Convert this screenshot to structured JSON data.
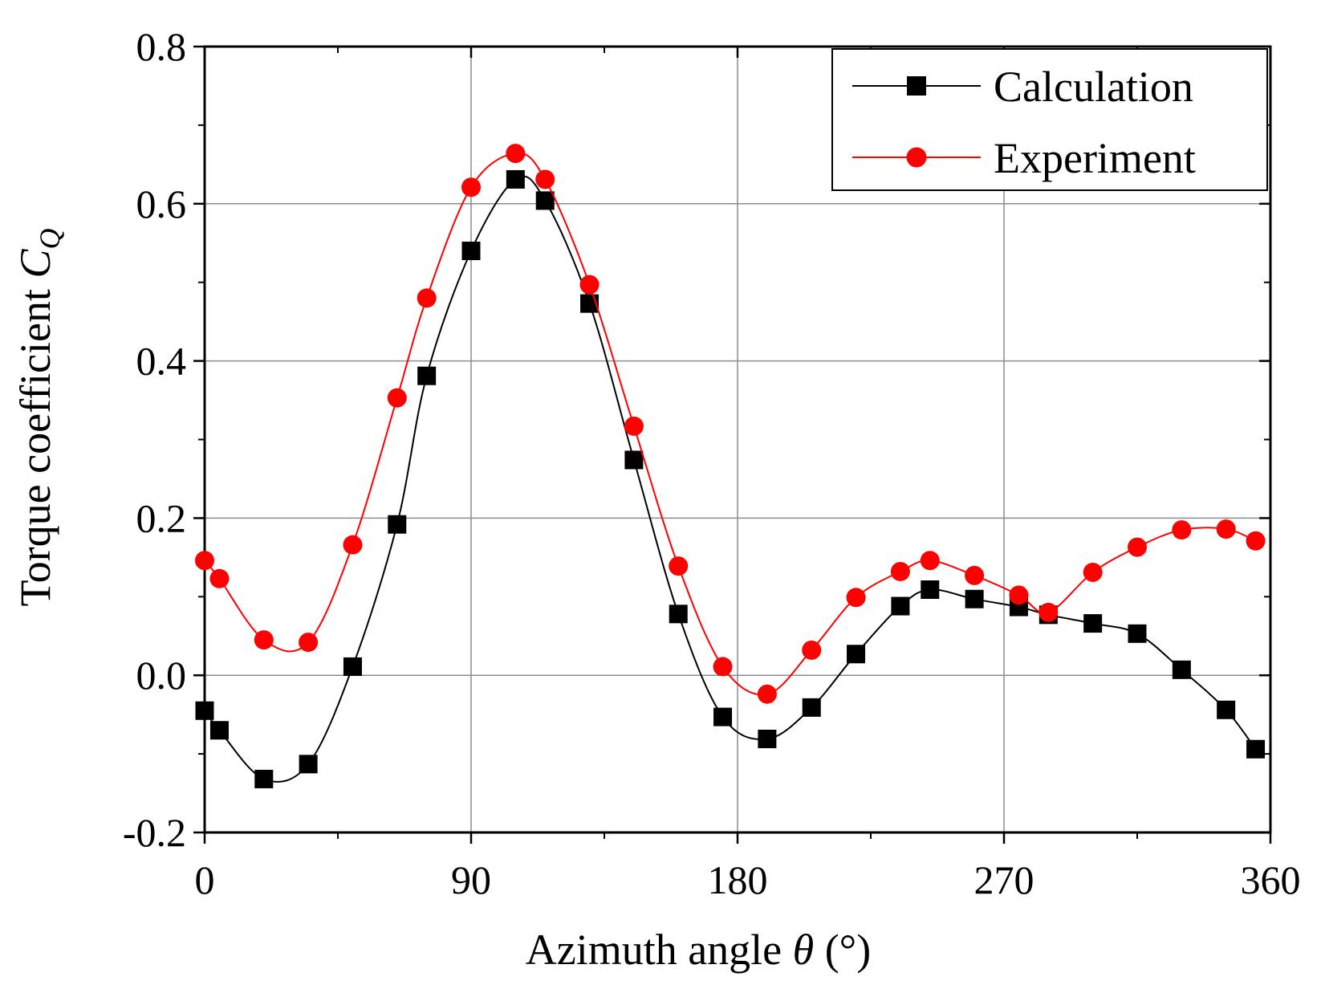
{
  "chart_data": {
    "type": "line",
    "title": "",
    "xlabel": "Azimuth angle",
    "xlabel_symbol": "θ",
    "xlabel_unit": "(°)",
    "ylabel": "Torque coefficient",
    "ylabel_symbol": "C",
    "ylabel_subscript": "Q",
    "xlim": [
      0,
      360
    ],
    "ylim": [
      -0.2,
      0.8
    ],
    "xticks": [
      0,
      90,
      180,
      270,
      360
    ],
    "yticks": [
      -0.2,
      0.0,
      0.2,
      0.4,
      0.6,
      0.8
    ],
    "xtick_labels": [
      "0",
      "90",
      "180",
      "270",
      "360"
    ],
    "ytick_labels": [
      "-0.2",
      "0.0",
      "0.2",
      "0.4",
      "0.6",
      "0.8"
    ],
    "grid": true,
    "legend_position": "top-right",
    "series": [
      {
        "name": "Calculation",
        "color": "#000000",
        "marker": "square",
        "x": [
          0,
          5,
          20,
          35,
          50,
          65,
          75,
          90,
          105,
          115,
          130,
          145,
          160,
          175,
          190,
          205,
          220,
          235,
          245,
          260,
          275,
          285,
          300,
          315,
          330,
          345,
          355
        ],
        "y": [
          -0.045,
          -0.07,
          -0.132,
          -0.113,
          0.011,
          0.192,
          0.381,
          0.54,
          0.631,
          0.604,
          0.473,
          0.274,
          0.078,
          -0.053,
          -0.081,
          -0.041,
          0.027,
          0.088,
          0.109,
          0.097,
          0.087,
          0.077,
          0.066,
          0.053,
          0.007,
          -0.044,
          -0.094
        ]
      },
      {
        "name": "Experiment",
        "color": "#ff0000",
        "marker": "circle",
        "x": [
          0,
          5,
          20,
          35,
          50,
          65,
          75,
          90,
          105,
          115,
          130,
          145,
          160,
          175,
          190,
          205,
          220,
          235,
          245,
          260,
          275,
          285,
          300,
          315,
          330,
          345,
          355
        ],
        "y": [
          0.146,
          0.123,
          0.045,
          0.042,
          0.166,
          0.353,
          0.48,
          0.621,
          0.664,
          0.631,
          0.497,
          0.317,
          0.139,
          0.011,
          -0.024,
          0.032,
          0.099,
          0.132,
          0.146,
          0.127,
          0.102,
          0.08,
          0.131,
          0.163,
          0.185,
          0.186,
          0.171
        ]
      }
    ]
  }
}
